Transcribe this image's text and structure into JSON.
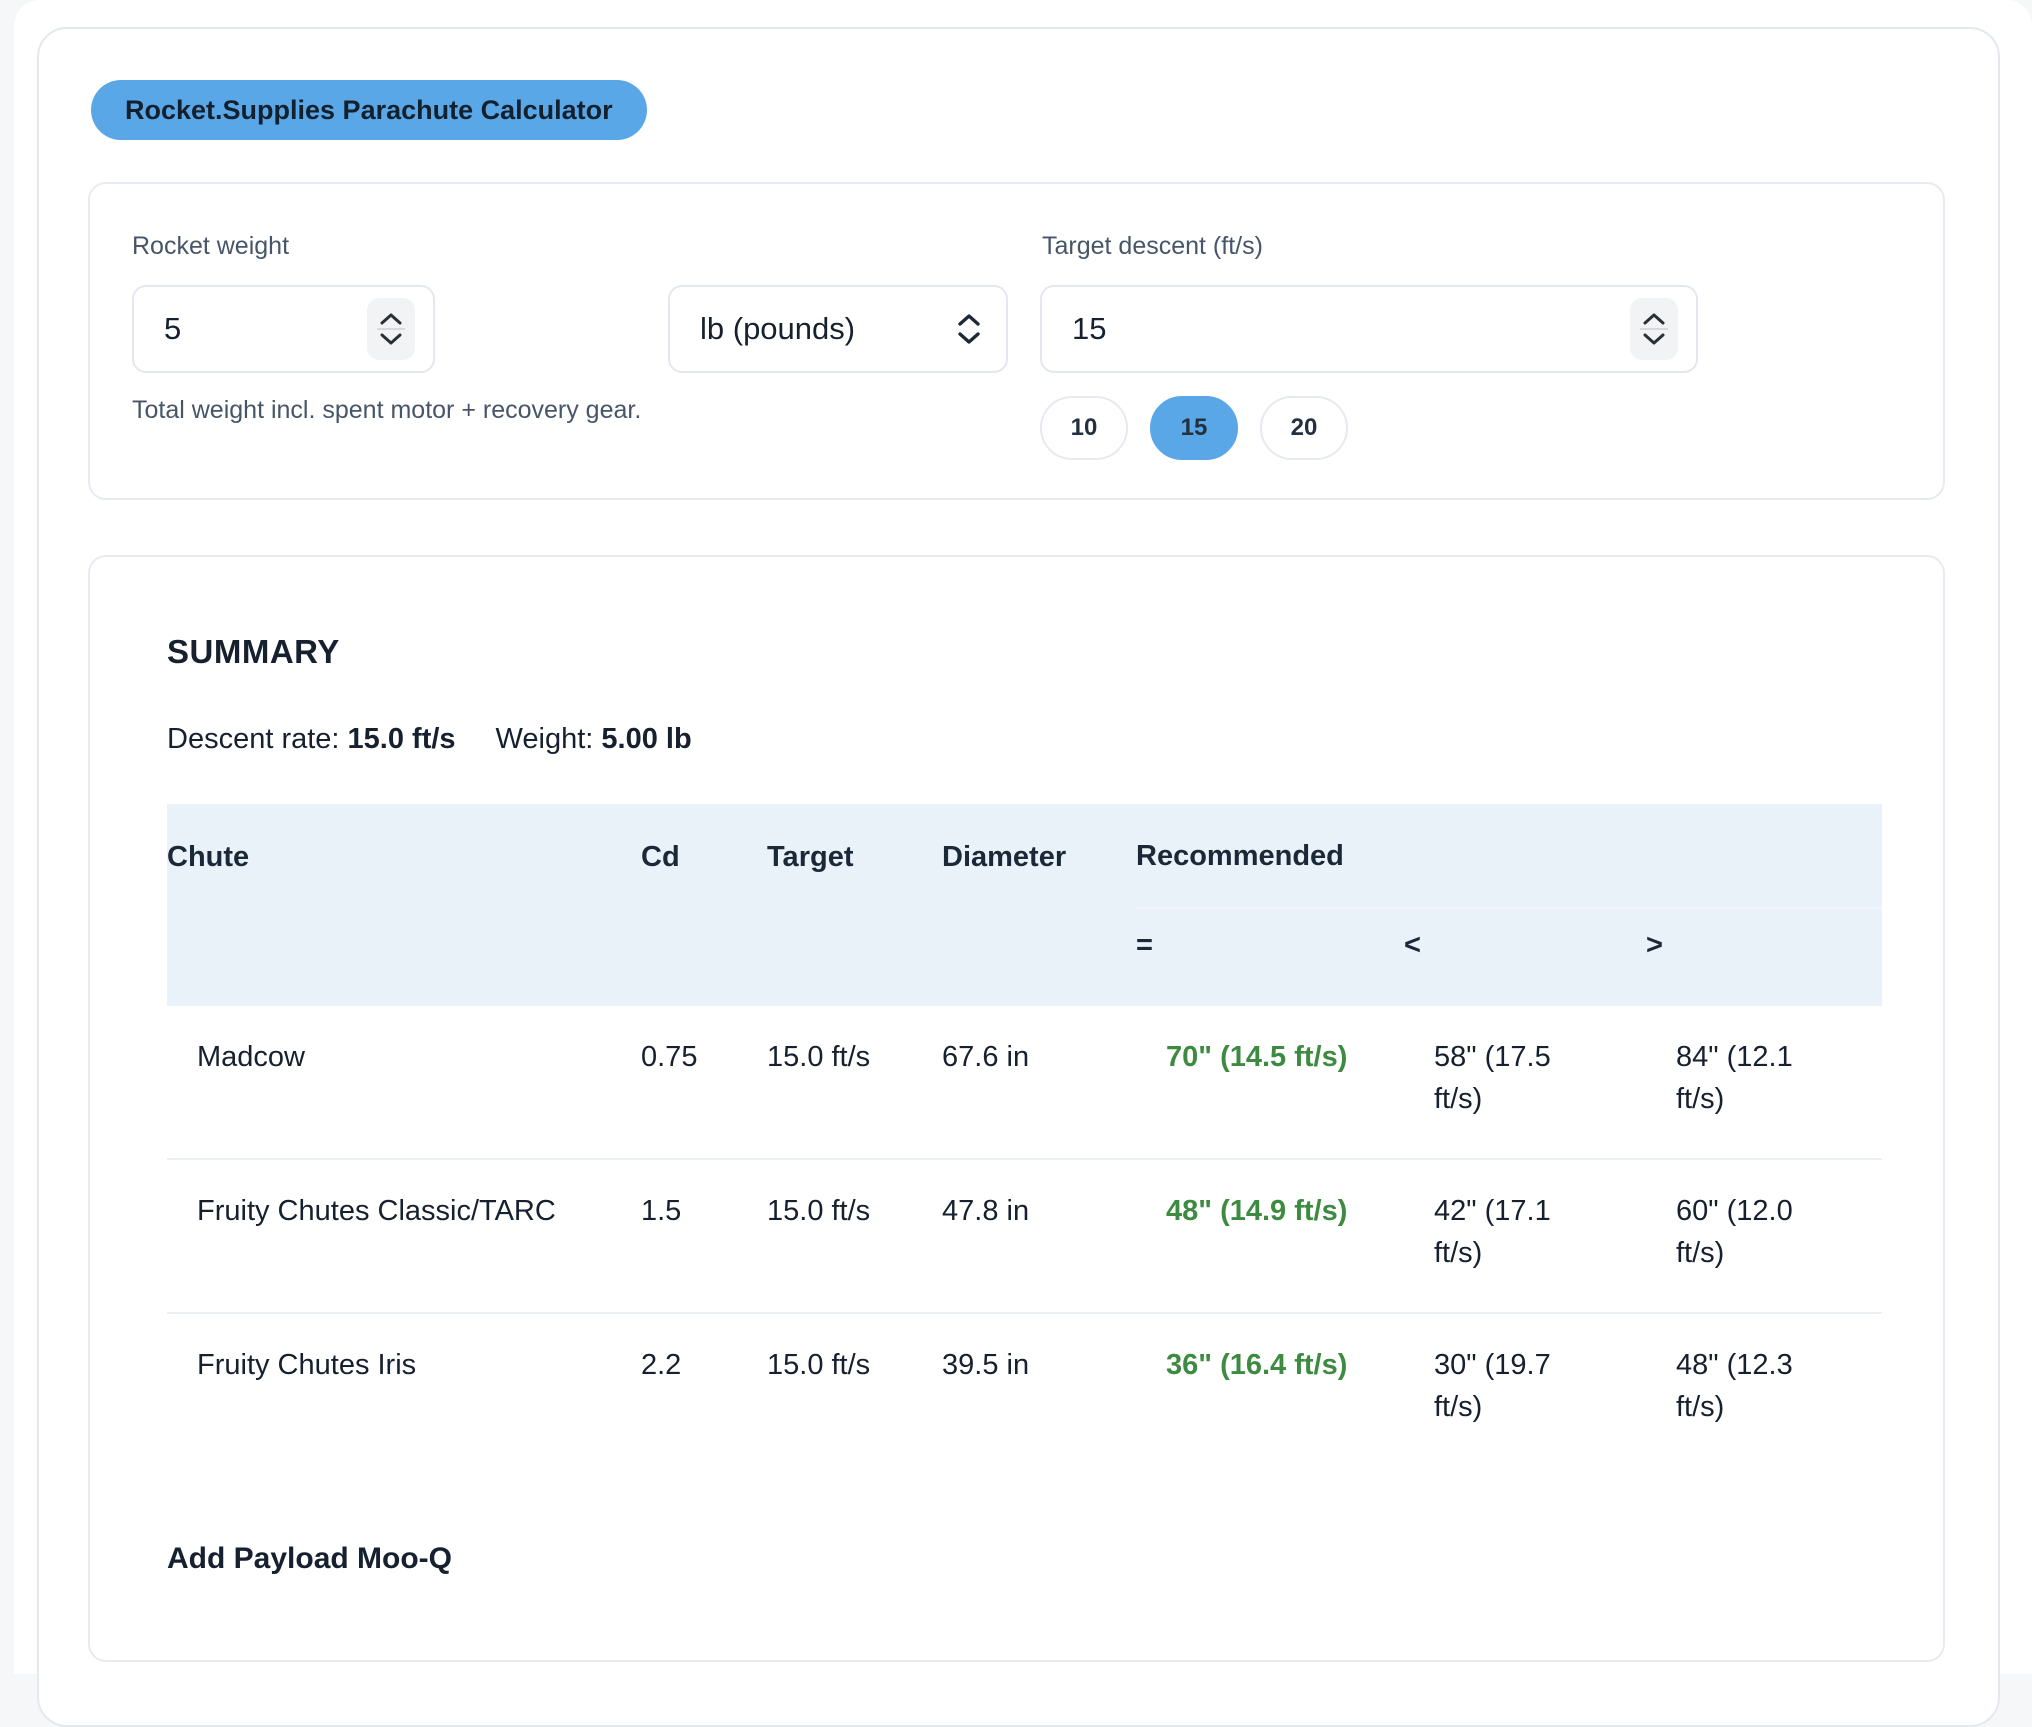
{
  "badge": {
    "label": "Rocket.Supplies Parachute Calculator"
  },
  "form": {
    "weight": {
      "label": "Rocket weight",
      "value": "5",
      "help": "Total weight incl. spent motor + recovery gear."
    },
    "unit": {
      "value": "lb (pounds)"
    },
    "descent": {
      "label": "Target descent (ft/s)",
      "value": "15",
      "presets": [
        {
          "label": "10",
          "selected": false
        },
        {
          "label": "15",
          "selected": true
        },
        {
          "label": "20",
          "selected": false
        }
      ]
    }
  },
  "summary": {
    "title": "SUMMARY",
    "descent_label": "Descent rate:",
    "descent_value": "15.0 ft/s",
    "weight_label": "Weight:",
    "weight_value": "5.00 lb",
    "footer": "Add Payload Moo-Q",
    "table": {
      "headers": {
        "chute": "Chute",
        "cd": "Cd",
        "target": "Target",
        "diameter": "Diameter",
        "recommended": "Recommended",
        "eq": "=",
        "lt": "<",
        "gt": ">"
      },
      "rows": [
        {
          "chute": "Madcow",
          "cd": "0.75",
          "target": "15.0 ft/s",
          "diameter": "67.6 in",
          "eq": "70\" (14.5 ft/s)",
          "lt": "58\" (17.5 ft/s)",
          "gt": "84\" (12.1 ft/s)"
        },
        {
          "chute": "Fruity Chutes Classic/TARC",
          "cd": "1.5",
          "target": "15.0 ft/s",
          "diameter": "47.8 in",
          "eq": "48\" (14.9 ft/s)",
          "lt": "42\" (17.1 ft/s)",
          "gt": "60\" (12.0 ft/s)"
        },
        {
          "chute": "Fruity Chutes Iris",
          "cd": "2.2",
          "target": "15.0 ft/s",
          "diameter": "39.5 in",
          "eq": "36\" (16.4 ft/s)",
          "lt": "30\" (19.7 ft/s)",
          "gt": "48\" (12.3 ft/s)"
        }
      ]
    }
  },
  "colors": {
    "accent_blue": "#5aa7e8",
    "recommended_green": "#3d8b40",
    "table_header_bg": "#e9f1f9",
    "text_dark": "#16202e",
    "text_slate": "#475569"
  }
}
